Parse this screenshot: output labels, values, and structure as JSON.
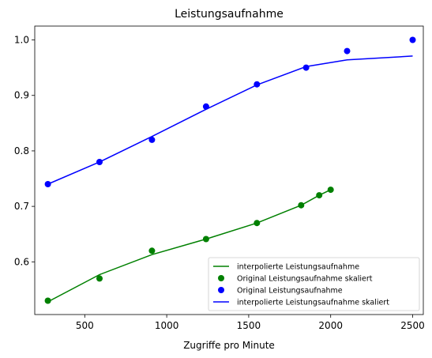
{
  "chart_data": {
    "type": "line",
    "title": "Leistungsaufnahme",
    "xlabel": "Zugriffe pro Minute",
    "ylabel": "",
    "xlim": [
      195,
      2565
    ],
    "ylim": [
      0.505,
      1.025
    ],
    "xticks": [
      500,
      1000,
      1500,
      2000,
      2500
    ],
    "xtick_labels": [
      "500",
      "1000",
      "1500",
      "2000",
      "2500"
    ],
    "yticks": [
      0.6,
      0.7,
      0.8,
      0.9,
      1.0
    ],
    "ytick_labels": [
      "0.6",
      "0.7",
      "0.8",
      "0.9",
      "1.0"
    ],
    "grid": false,
    "legend_position": "lower-right",
    "series": [
      {
        "name": "interpolierte Leistungsaufnahme",
        "kind": "line",
        "color": "#008000",
        "x": [
          275,
          590,
          910,
          1240,
          1550,
          1820,
          1930,
          2000
        ],
        "y": [
          0.528,
          0.577,
          0.613,
          0.641,
          0.67,
          0.702,
          0.72,
          0.73
        ]
      },
      {
        "name": "Original Leistungsaufnahme skaliert",
        "kind": "scatter",
        "color": "#008000",
        "x": [
          275,
          590,
          910,
          1240,
          1550,
          1820,
          1930,
          2000
        ],
        "y": [
          0.53,
          0.57,
          0.62,
          0.641,
          0.67,
          0.702,
          0.72,
          0.73
        ]
      },
      {
        "name": "Original Leistungsaufnahme",
        "kind": "scatter",
        "color": "#0000ff",
        "x": [
          275,
          590,
          910,
          1240,
          1550,
          1850,
          2100,
          2500
        ],
        "y": [
          0.74,
          0.78,
          0.82,
          0.88,
          0.92,
          0.95,
          0.98,
          1.0
        ]
      },
      {
        "name": "interpolierte Leistungsaufnahme skaliert",
        "kind": "line",
        "color": "#0000ff",
        "x": [
          275,
          590,
          910,
          1240,
          1550,
          1850,
          2100,
          2500
        ],
        "y": [
          0.74,
          0.78,
          0.826,
          0.875,
          0.919,
          0.952,
          0.964,
          0.971
        ]
      }
    ]
  }
}
